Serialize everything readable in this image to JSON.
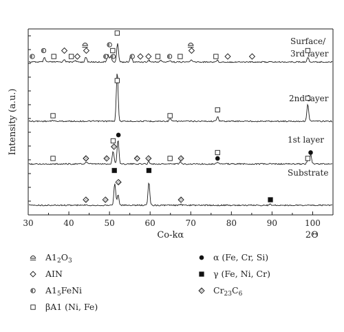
{
  "chart_data": {
    "type": "line",
    "xlabel": "Co-kα",
    "xlabel_right": "2Θ",
    "ylabel": "Intensity (a.u.)",
    "xlim": [
      30,
      105
    ],
    "x_ticks": [
      30,
      40,
      50,
      60,
      70,
      80,
      90,
      100
    ],
    "x_tick_labels": [
      "30",
      "40",
      "50",
      "60",
      "70",
      "80",
      "90",
      "100"
    ],
    "series": [
      {
        "name": "Surface/ 3rd layer",
        "label_lines": [
          "Surface/",
          "3rd layer"
        ],
        "peaks": [
          {
            "x": 34.0,
            "h": 0.12
          },
          {
            "x": 38.9,
            "h": 0.08
          },
          {
            "x": 41.5,
            "h": 0.05
          },
          {
            "x": 44.2,
            "h": 0.14
          },
          {
            "x": 49.6,
            "h": 0.22
          },
          {
            "x": 50.3,
            "h": 0.17
          },
          {
            "x": 52.0,
            "h": 0.55
          },
          {
            "x": 55.3,
            "h": 0.2
          },
          {
            "x": 59.7,
            "h": 0.05
          },
          {
            "x": 62.6,
            "h": 0.05
          },
          {
            "x": 64.9,
            "h": 0.05
          },
          {
            "x": 70.1,
            "h": 0.06
          },
          {
            "x": 76.5,
            "h": 0.05
          },
          {
            "x": 98.8,
            "h": 0.14
          }
        ],
        "markers": [
          {
            "phase": "A15FeNi",
            "x": 31.0,
            "row": 0
          },
          {
            "phase": "A15FeNi",
            "x": 33.8,
            "row": 1
          },
          {
            "phase": "βA1 (Ni, Fe)",
            "x": 36.3,
            "row": 0
          },
          {
            "phase": "AIN",
            "x": 38.9,
            "row": 1
          },
          {
            "phase": "βA1 (Ni, Fe)",
            "x": 40.6,
            "row": 0
          },
          {
            "phase": "AIN",
            "x": 42.1,
            "row": 0
          },
          {
            "phase": "Al2O3",
            "x": 44.0,
            "row": 2
          },
          {
            "phase": "AIN",
            "x": 44.3,
            "row": 1
          },
          {
            "phase": "A15FeNi",
            "x": 49.1,
            "row": 0
          },
          {
            "phase": "A15FeNi",
            "x": 50.0,
            "row": 2
          },
          {
            "phase": "βA1 (Ni, Fe)",
            "x": 50.8,
            "row": 1
          },
          {
            "phase": "A15FeNi",
            "x": 50.9,
            "row": 0
          },
          {
            "phase": "βA1 (Ni, Fe)",
            "x": 51.9,
            "row": 4
          },
          {
            "phase": "A15FeNi",
            "x": 55.6,
            "row": 0
          },
          {
            "phase": "AIN",
            "x": 57.6,
            "row": 0
          },
          {
            "phase": "AIN",
            "x": 59.6,
            "row": 0
          },
          {
            "phase": "βA1 (Ni, Fe)",
            "x": 61.9,
            "row": 0
          },
          {
            "phase": "A15FeNi",
            "x": 64.8,
            "row": 0
          },
          {
            "phase": "βA1 (Ni, Fe)",
            "x": 67.4,
            "row": 0
          },
          {
            "phase": "Al2O3",
            "x": 70.0,
            "row": 2
          },
          {
            "phase": "AIN",
            "x": 70.2,
            "row": 1
          },
          {
            "phase": "βA1 (Ni, Fe)",
            "x": 76.2,
            "row": 0
          },
          {
            "phase": "AIN",
            "x": 79.1,
            "row": 0
          },
          {
            "phase": "AIN",
            "x": 85.1,
            "row": 0
          },
          {
            "phase": "βA1 (Ni, Fe)",
            "x": 98.8,
            "row": 1
          }
        ]
      },
      {
        "name": "2nd layer",
        "label_lines": [
          "2nd layer"
        ],
        "peaks": [
          {
            "x": 36.1,
            "h": 0.02
          },
          {
            "x": 51.9,
            "h": 1.0
          },
          {
            "x": 64.9,
            "h": 0.05
          },
          {
            "x": 76.6,
            "h": 0.1
          },
          {
            "x": 98.8,
            "h": 0.35
          }
        ],
        "markers": [
          {
            "phase": "βA1 (Ni, Fe)",
            "x": 36.1,
            "row": 0
          },
          {
            "phase": "βA1 (Ni, Fe)",
            "x": 51.9,
            "row": 6
          },
          {
            "phase": "βA1 (Ni, Fe)",
            "x": 64.9,
            "row": 0
          },
          {
            "phase": "βA1 (Ni, Fe)",
            "x": 76.6,
            "row": 1
          },
          {
            "phase": "βA1 (Ni, Fe)",
            "x": 98.8,
            "row": 3
          }
        ]
      },
      {
        "name": "1st layer",
        "label_lines": [
          "1st layer"
        ],
        "peaks": [
          {
            "x": 44.3,
            "h": 0.05
          },
          {
            "x": 50.9,
            "h": 0.3
          },
          {
            "x": 52.1,
            "h": 0.58
          },
          {
            "x": 59.7,
            "h": 0.05
          },
          {
            "x": 67.4,
            "h": 0.04
          },
          {
            "x": 76.6,
            "h": 0.05
          },
          {
            "x": 98.8,
            "h": 0.09
          },
          {
            "x": 99.5,
            "h": 0.22
          }
        ],
        "markers": [
          {
            "phase": "βA1 (Ni, Fe)",
            "x": 36.1,
            "row": 0
          },
          {
            "phase": "Cr23C6",
            "x": 44.2,
            "row": 0
          },
          {
            "phase": "Cr23C6",
            "x": 49.3,
            "row": 0
          },
          {
            "phase": "βA1 (Ni, Fe)",
            "x": 50.9,
            "row": 3
          },
          {
            "phase": "Cr23C6",
            "x": 51.1,
            "row": 2
          },
          {
            "phase": "α (Fe, Cr, Si)",
            "x": 52.2,
            "row": 4
          },
          {
            "phase": "Cr23C6",
            "x": 56.8,
            "row": 0
          },
          {
            "phase": "Cr23C6",
            "x": 59.6,
            "row": 0
          },
          {
            "phase": "βA1 (Ni, Fe)",
            "x": 64.9,
            "row": 0
          },
          {
            "phase": "Cr23C6",
            "x": 67.6,
            "row": 0
          },
          {
            "phase": "α (Fe, Cr, Si)",
            "x": 76.6,
            "row": 0
          },
          {
            "phase": "βA1 (Ni, Fe)",
            "x": 76.6,
            "row": 1
          },
          {
            "phase": "βA1 (Ni, Fe)",
            "x": 98.8,
            "row": 0
          },
          {
            "phase": "α (Fe, Cr, Si)",
            "x": 99.5,
            "row": 1
          }
        ]
      },
      {
        "name": "Substrate",
        "label_lines": [
          "Substrate"
        ],
        "peaks": [
          {
            "x": 44.3,
            "h": 0.02
          },
          {
            "x": 51.3,
            "h": 0.58
          },
          {
            "x": 52.1,
            "h": 0.28
          },
          {
            "x": 59.7,
            "h": 0.6
          },
          {
            "x": 67.6,
            "h": 0.02
          },
          {
            "x": 89.6,
            "h": 0.03
          }
        ],
        "markers": [
          {
            "phase": "Cr23C6",
            "x": 44.2,
            "row": 0
          },
          {
            "phase": "Cr23C6",
            "x": 49.0,
            "row": 0
          },
          {
            "phase": "γ (Fe, Ni, Cr)",
            "x": 51.2,
            "row": 5
          },
          {
            "phase": "Cr23C6",
            "x": 52.2,
            "row": 3
          },
          {
            "phase": "γ (Fe, Ni, Cr)",
            "x": 59.7,
            "row": 5
          },
          {
            "phase": "Cr23C6",
            "x": 67.6,
            "row": 0
          },
          {
            "phase": "γ (Fe, Ni, Cr)",
            "x": 89.6,
            "row": 0
          }
        ]
      }
    ],
    "legend": {
      "placement": "bottom",
      "columns": [
        [
          {
            "phase": "Al2O3",
            "label": "A1",
            "sub": "2",
            "label2": "O",
            "sub2": "3"
          },
          {
            "phase": "AIN",
            "label": "AIN"
          },
          {
            "phase": "A15FeNi",
            "label": "A1",
            "sub": "5",
            "label2": "FeNi"
          },
          {
            "phase": "βA1 (Ni, Fe)",
            "label": "βA1 (Ni, Fe)"
          }
        ],
        [
          {
            "phase": "α (Fe, Cr, Si)",
            "label": "α (Fe, Cr, Si)"
          },
          {
            "phase": "γ (Fe, Ni, Cr)",
            "label": "γ (Fe, Ni, Cr)"
          },
          {
            "phase": "Cr23C6",
            "label": "Cr",
            "sub": "23",
            "label2": "C",
            "sub2": "6"
          }
        ]
      ]
    },
    "phase_symbols": {
      "Al2O3": "triangle-hat",
      "AIN": "diamond-open",
      "A15FeNi": "half-circle",
      "βA1 (Ni, Fe)": "square-open",
      "α (Fe, Cr, Si)": "circle-filled",
      "γ (Fe, Ni, Cr)": "square-filled",
      "Cr23C6": "diamond-hatched"
    },
    "grid": false
  }
}
